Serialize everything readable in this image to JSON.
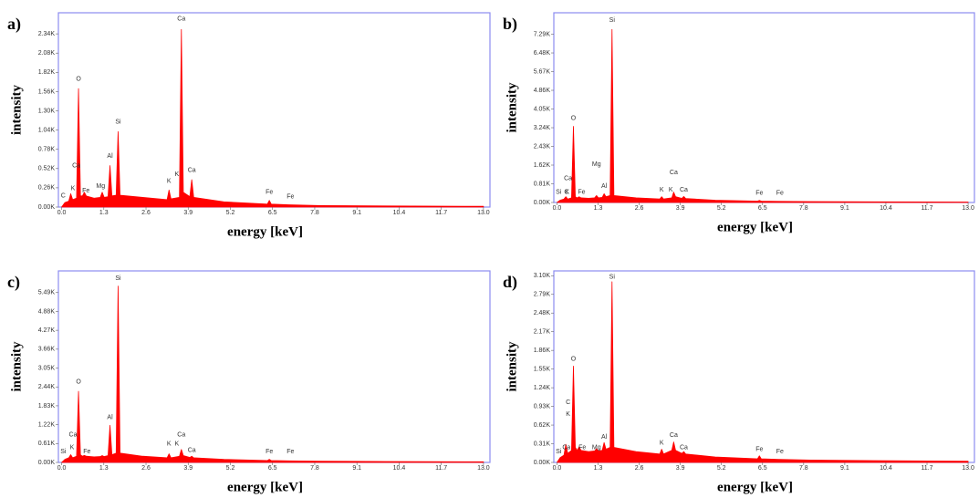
{
  "chart_data": [
    {
      "type": "area",
      "panel_label": "a)",
      "ylabel": "intensity",
      "xlabel": "energy [keV]",
      "color": "#ff0000",
      "frame_color": "#8c8cf0",
      "xlim": [
        -0.1,
        13.2
      ],
      "ylim": [
        0,
        2625
      ],
      "xticks": [
        {
          "value": 0,
          "label": "0.0"
        },
        1.3,
        2.6,
        3.9,
        5.2,
        6.5,
        7.8,
        9.1,
        10.4,
        11.7,
        {
          "value": 13,
          "label": "13.0"
        }
      ],
      "yticks": [
        {
          "value": 0,
          "label": "0.00K"
        },
        {
          "value": 260,
          "label": "0.26K"
        },
        {
          "value": 520,
          "label": "0.52K"
        },
        {
          "value": 780,
          "label": "0.78K"
        },
        {
          "value": 1040,
          "label": "1.04K"
        },
        {
          "value": 1300,
          "label": "1.30K"
        },
        {
          "value": 1560,
          "label": "1.56K"
        },
        {
          "value": 1820,
          "label": "1.82K"
        },
        {
          "value": 2080,
          "label": "2.08K"
        },
        {
          "value": 2340,
          "label": "2.34K"
        }
      ],
      "x": [
        0,
        0.1,
        0.22,
        0.28,
        0.34,
        0.46,
        0.52,
        0.58,
        0.64,
        0.7,
        0.76,
        1.0,
        1.19,
        1.25,
        1.31,
        1.43,
        1.49,
        1.55,
        1.68,
        1.74,
        1.8,
        2.5,
        3.25,
        3.31,
        3.37,
        3.63,
        3.69,
        3.75,
        3.95,
        4.01,
        4.07,
        5.0,
        6.34,
        6.4,
        6.46,
        7.0,
        8.0,
        10.0,
        13.0
      ],
      "values": [
        0,
        60,
        80,
        180,
        100,
        120,
        1600,
        150,
        150,
        200,
        150,
        120,
        130,
        200,
        130,
        140,
        560,
        150,
        160,
        1020,
        160,
        130,
        100,
        230,
        110,
        130,
        2400,
        200,
        140,
        370,
        130,
        70,
        40,
        90,
        40,
        30,
        20,
        15,
        10
      ],
      "annotations": [
        {
          "text": "C",
          "x": 0.05,
          "y": 150
        },
        {
          "text": "K",
          "x": 0.35,
          "y": 250
        },
        {
          "text": "Ca",
          "x": 0.45,
          "y": 560
        },
        {
          "text": "O",
          "x": 0.52,
          "y": 1730
        },
        {
          "text": "Fe",
          "x": 0.75,
          "y": 220
        },
        {
          "text": "Mg",
          "x": 1.2,
          "y": 280
        },
        {
          "text": "Al",
          "x": 1.49,
          "y": 690
        },
        {
          "text": "Si",
          "x": 1.74,
          "y": 1150
        },
        {
          "text": "K",
          "x": 3.31,
          "y": 350
        },
        {
          "text": "K",
          "x": 3.55,
          "y": 440
        },
        {
          "text": "Ca",
          "x": 3.69,
          "y": 2540
        },
        {
          "text": "Ca",
          "x": 4.01,
          "y": 500
        },
        {
          "text": "Fe",
          "x": 6.4,
          "y": 200
        },
        {
          "text": "Fe",
          "x": 7.05,
          "y": 140
        }
      ]
    },
    {
      "type": "area",
      "panel_label": "b)",
      "ylabel": "intensity",
      "xlabel": "energy [keV]",
      "color": "#ff0000",
      "frame_color": "#8c8cf0",
      "xlim": [
        -0.1,
        13.2
      ],
      "ylim": [
        0,
        8220
      ],
      "xticks": [
        {
          "value": 0,
          "label": "0.0"
        },
        1.3,
        2.6,
        3.9,
        5.2,
        6.5,
        7.8,
        9.1,
        10.4,
        11.7,
        {
          "value": 13,
          "label": "13.0"
        }
      ],
      "yticks": [
        {
          "value": 0,
          "label": "0.00K"
        },
        {
          "value": 810,
          "label": "0.81K"
        },
        {
          "value": 1620,
          "label": "1.62K"
        },
        {
          "value": 2430,
          "label": "2.43K"
        },
        {
          "value": 3240,
          "label": "3.24K"
        },
        {
          "value": 4050,
          "label": "4.05K"
        },
        {
          "value": 4860,
          "label": "4.86K"
        },
        {
          "value": 5670,
          "label": "5.67K"
        },
        {
          "value": 6480,
          "label": "6.48K"
        },
        {
          "value": 7290,
          "label": "7.29K"
        }
      ],
      "x": [
        0,
        0.1,
        0.22,
        0.28,
        0.34,
        0.46,
        0.52,
        0.58,
        0.64,
        0.7,
        0.76,
        1.0,
        1.19,
        1.25,
        1.31,
        1.43,
        1.49,
        1.55,
        1.68,
        1.74,
        1.8,
        2.5,
        3.25,
        3.31,
        3.37,
        3.63,
        3.69,
        3.75,
        3.95,
        4.01,
        4.07,
        5.0,
        6.34,
        6.4,
        6.46,
        7.0,
        8.0,
        10.0,
        13.0
      ],
      "values": [
        0,
        100,
        150,
        250,
        150,
        200,
        3300,
        250,
        200,
        250,
        200,
        180,
        200,
        300,
        200,
        220,
        380,
        250,
        300,
        7500,
        300,
        200,
        150,
        250,
        150,
        200,
        450,
        250,
        180,
        260,
        170,
        100,
        60,
        90,
        60,
        50,
        40,
        30,
        20
      ],
      "annotations": [
        {
          "text": "Si",
          "x": 0.05,
          "y": 450
        },
        {
          "text": "C",
          "x": 0.3,
          "y": 450
        },
        {
          "text": "K",
          "x": 0.32,
          "y": 450
        },
        {
          "text": "Ca",
          "x": 0.35,
          "y": 1050
        },
        {
          "text": "O",
          "x": 0.52,
          "y": 3650
        },
        {
          "text": "Fe",
          "x": 0.78,
          "y": 450
        },
        {
          "text": "Mg",
          "x": 1.25,
          "y": 1650
        },
        {
          "text": "Al",
          "x": 1.49,
          "y": 700
        },
        {
          "text": "Si",
          "x": 1.74,
          "y": 7900
        },
        {
          "text": "K",
          "x": 3.31,
          "y": 550
        },
        {
          "text": "K",
          "x": 3.6,
          "y": 550
        },
        {
          "text": "Ca",
          "x": 3.69,
          "y": 1300
        },
        {
          "text": "Ca",
          "x": 4.01,
          "y": 550
        },
        {
          "text": "Fe",
          "x": 6.4,
          "y": 400
        },
        {
          "text": "Fe",
          "x": 7.05,
          "y": 400
        }
      ]
    },
    {
      "type": "area",
      "panel_label": "c)",
      "ylabel": "intensity",
      "xlabel": "energy [keV]",
      "color": "#ff0000",
      "frame_color": "#8c8cf0",
      "xlim": [
        -0.1,
        13.2
      ],
      "ylim": [
        0,
        6190
      ],
      "xticks": [
        {
          "value": 0,
          "label": "0.0"
        },
        1.3,
        2.6,
        3.9,
        5.2,
        6.5,
        7.8,
        9.1,
        10.4,
        11.7,
        {
          "value": 13,
          "label": "13.0"
        }
      ],
      "yticks": [
        {
          "value": 0,
          "label": "0.00K"
        },
        {
          "value": 610,
          "label": "0.61K"
        },
        {
          "value": 1220,
          "label": "1.22K"
        },
        {
          "value": 1830,
          "label": "1.83K"
        },
        {
          "value": 2440,
          "label": "2.44K"
        },
        {
          "value": 3050,
          "label": "3.05K"
        },
        {
          "value": 3660,
          "label": "3.66K"
        },
        {
          "value": 4270,
          "label": "4.27K"
        },
        {
          "value": 4880,
          "label": "4.88K"
        },
        {
          "value": 5490,
          "label": "5.49K"
        }
      ],
      "x": [
        0,
        0.1,
        0.22,
        0.28,
        0.34,
        0.46,
        0.52,
        0.58,
        0.64,
        0.7,
        0.76,
        1.0,
        1.19,
        1.25,
        1.31,
        1.43,
        1.49,
        1.55,
        1.68,
        1.74,
        1.8,
        2.5,
        3.25,
        3.31,
        3.37,
        3.63,
        3.69,
        3.75,
        3.95,
        4.01,
        4.07,
        5.0,
        6.34,
        6.4,
        6.46,
        7.0,
        8.0,
        10.0,
        13.0
      ],
      "values": [
        0,
        100,
        150,
        250,
        150,
        200,
        2300,
        250,
        200,
        230,
        200,
        180,
        190,
        220,
        190,
        220,
        1200,
        250,
        300,
        5700,
        300,
        200,
        150,
        280,
        150,
        200,
        420,
        220,
        160,
        200,
        150,
        100,
        60,
        100,
        60,
        50,
        40,
        30,
        20
      ],
      "annotations": [
        {
          "text": "Si",
          "x": 0.05,
          "y": 350
        },
        {
          "text": "K",
          "x": 0.32,
          "y": 480
        },
        {
          "text": "Ca",
          "x": 0.35,
          "y": 900
        },
        {
          "text": "O",
          "x": 0.52,
          "y": 2600
        },
        {
          "text": "Fe",
          "x": 0.78,
          "y": 350
        },
        {
          "text": "Al",
          "x": 1.49,
          "y": 1450
        },
        {
          "text": "Si",
          "x": 1.74,
          "y": 5950
        },
        {
          "text": "K",
          "x": 3.31,
          "y": 600
        },
        {
          "text": "K",
          "x": 3.55,
          "y": 600
        },
        {
          "text": "Ca",
          "x": 3.69,
          "y": 900
        },
        {
          "text": "Ca",
          "x": 4.01,
          "y": 400
        },
        {
          "text": "Fe",
          "x": 6.4,
          "y": 350
        },
        {
          "text": "Fe",
          "x": 7.05,
          "y": 350
        }
      ]
    },
    {
      "type": "area",
      "panel_label": "d)",
      "ylabel": "intensity",
      "xlabel": "energy [keV]",
      "color": "#ff0000",
      "frame_color": "#8c8cf0",
      "xlim": [
        -0.1,
        13.2
      ],
      "ylim": [
        0,
        3180
      ],
      "xticks": [
        {
          "value": 0,
          "label": "0.0"
        },
        1.3,
        2.6,
        3.9,
        5.2,
        6.5,
        7.8,
        9.1,
        10.4,
        11.7,
        {
          "value": 13,
          "label": "13.0"
        }
      ],
      "yticks": [
        {
          "value": 0,
          "label": "0.00K"
        },
        {
          "value": 310,
          "label": "0.31K"
        },
        {
          "value": 620,
          "label": "0.62K"
        },
        {
          "value": 930,
          "label": "0.93K"
        },
        {
          "value": 1240,
          "label": "1.24K"
        },
        {
          "value": 1550,
          "label": "1.55K"
        },
        {
          "value": 1860,
          "label": "1.86K"
        },
        {
          "value": 2170,
          "label": "2.17K"
        },
        {
          "value": 2480,
          "label": "2.48K"
        },
        {
          "value": 2790,
          "label": "2.79K"
        },
        {
          "value": 3100,
          "label": "3.10K"
        }
      ],
      "x": [
        0,
        0.1,
        0.22,
        0.28,
        0.34,
        0.46,
        0.52,
        0.58,
        0.64,
        0.7,
        0.76,
        1.0,
        1.19,
        1.25,
        1.31,
        1.43,
        1.49,
        1.55,
        1.68,
        1.74,
        1.8,
        2.5,
        3.25,
        3.31,
        3.37,
        3.63,
        3.69,
        3.75,
        3.95,
        4.01,
        4.07,
        5.0,
        6.34,
        6.4,
        6.46,
        7.0,
        8.0,
        10.0,
        13.0
      ],
      "values": [
        0,
        80,
        120,
        300,
        150,
        200,
        1600,
        250,
        200,
        260,
        200,
        180,
        190,
        230,
        190,
        200,
        330,
        220,
        250,
        3000,
        250,
        180,
        140,
        220,
        140,
        200,
        340,
        200,
        150,
        180,
        140,
        90,
        60,
        110,
        60,
        50,
        40,
        30,
        20
      ],
      "annotations": [
        {
          "text": "Si",
          "x": 0.05,
          "y": 180
        },
        {
          "text": "Ca",
          "x": 0.3,
          "y": 250
        },
        {
          "text": "K",
          "x": 0.35,
          "y": 800
        },
        {
          "text": "C",
          "x": 0.35,
          "y": 1000
        },
        {
          "text": "O",
          "x": 0.52,
          "y": 1720
        },
        {
          "text": "Fe",
          "x": 0.8,
          "y": 250
        },
        {
          "text": "Mg",
          "x": 1.25,
          "y": 250
        },
        {
          "text": "Al",
          "x": 1.49,
          "y": 420
        },
        {
          "text": "Si",
          "x": 1.74,
          "y": 3080
        },
        {
          "text": "K",
          "x": 3.31,
          "y": 320
        },
        {
          "text": "Ca",
          "x": 3.69,
          "y": 450
        },
        {
          "text": "Ca",
          "x": 4.01,
          "y": 250
        },
        {
          "text": "Fe",
          "x": 6.4,
          "y": 220
        },
        {
          "text": "Fe",
          "x": 7.05,
          "y": 180
        }
      ]
    }
  ]
}
